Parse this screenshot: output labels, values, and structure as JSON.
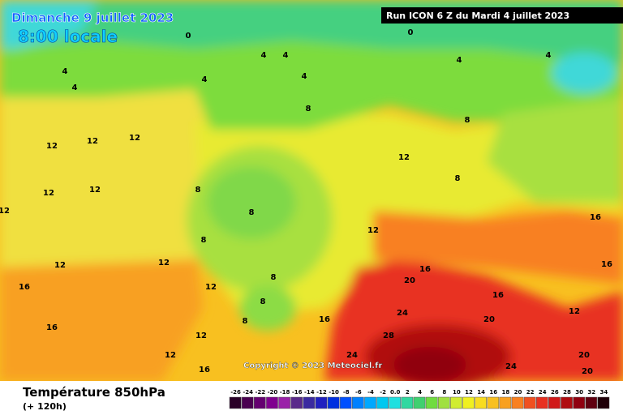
{
  "header": {
    "date": "Dimanche 9 juillet 2023",
    "time": "8:00 locale",
    "run": "Run ICON 6 Z du Mardi 4 juillet 2023"
  },
  "map": {
    "copyright": "Copyright © 2023 Meteociel.fr",
    "contour_labels": [
      "0",
      "0",
      "4",
      "4",
      "4",
      "4",
      "4",
      "4",
      "4",
      "4",
      "8",
      "8",
      "8",
      "8",
      "8",
      "8",
      "12",
      "12",
      "12",
      "12",
      "12",
      "12",
      "12",
      "12",
      "12",
      "12",
      "12",
      "12",
      "16",
      "16",
      "16",
      "16",
      "16",
      "16",
      "20",
      "20",
      "20",
      "24",
      "24",
      "24",
      "28",
      "8",
      "8",
      "8",
      "12",
      "12",
      "16",
      "16",
      "20"
    ]
  },
  "footer": {
    "title": "Température 850hPa",
    "lead": "(+ 120h)"
  },
  "scale": [
    {
      "label": "-26",
      "color": "#2a0028"
    },
    {
      "label": "-24",
      "color": "#4a0050"
    },
    {
      "label": "-22",
      "color": "#650070"
    },
    {
      "label": "-20",
      "color": "#80008f"
    },
    {
      "label": "-18",
      "color": "#9a20a8"
    },
    {
      "label": "-16",
      "color": "#5a2a8a"
    },
    {
      "label": "-14",
      "color": "#3a2aa0"
    },
    {
      "label": "-12",
      "color": "#2020c0"
    },
    {
      "label": "-10",
      "color": "#0030e0"
    },
    {
      "label": "-8",
      "color": "#0050ff"
    },
    {
      "label": "-6",
      "color": "#0080ff"
    },
    {
      "label": "-4",
      "color": "#00a8ff"
    },
    {
      "label": "-2",
      "color": "#00c8f0"
    },
    {
      "label": "0.0",
      "color": "#20e0e0"
    },
    {
      "label": "2",
      "color": "#30d8a0"
    },
    {
      "label": "4",
      "color": "#40d070"
    },
    {
      "label": "6",
      "color": "#70dc40"
    },
    {
      "label": "8",
      "color": "#a0e040"
    },
    {
      "label": "10",
      "color": "#d0ec30"
    },
    {
      "label": "12",
      "color": "#f0f020"
    },
    {
      "label": "14",
      "color": "#f8dc20"
    },
    {
      "label": "16",
      "color": "#f8c020"
    },
    {
      "label": "18",
      "color": "#f8a020"
    },
    {
      "label": "20",
      "color": "#f88020"
    },
    {
      "label": "22",
      "color": "#f05020"
    },
    {
      "label": "24",
      "color": "#e83020"
    },
    {
      "label": "26",
      "color": "#d01818"
    },
    {
      "label": "28",
      "color": "#b00c10"
    },
    {
      "label": "30",
      "color": "#900010"
    },
    {
      "label": "32",
      "color": "#600010"
    },
    {
      "label": "34",
      "color": "#200008"
    }
  ]
}
